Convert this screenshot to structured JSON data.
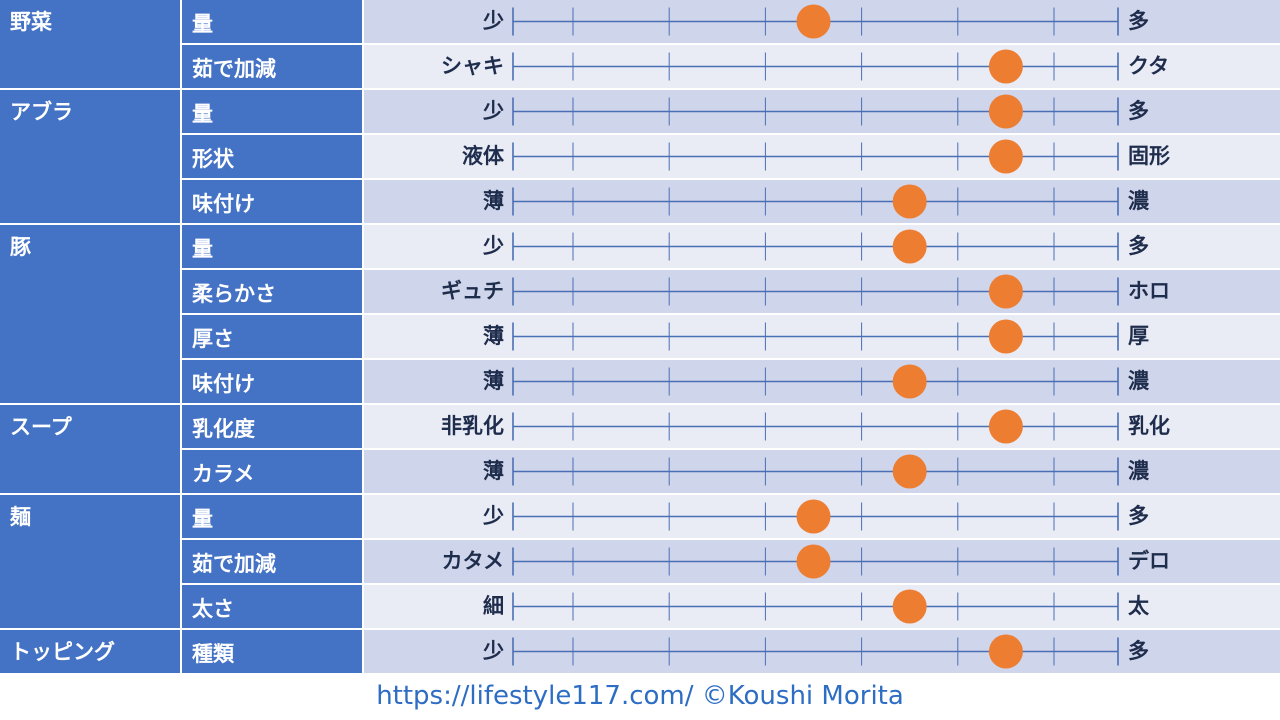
{
  "chart_data": {
    "type": "scatter",
    "scale": {
      "min": 1,
      "max": 6,
      "tick_values": [
        1,
        2,
        3,
        4,
        5,
        6
      ]
    },
    "colors": {
      "category_bg": "#4472c4",
      "band_dark": "#cfd5ea",
      "band_light": "#e9ebf5",
      "line": "#4a6fb5",
      "marker": "#ed7d31",
      "footer_text": "#2e6dc4"
    },
    "groups": [
      {
        "category": "野菜",
        "rows": [
          {
            "attribute": "量",
            "left": "少",
            "right": "多",
            "value": 3.5
          },
          {
            "attribute": "茹で加減",
            "left": "シャキ",
            "right": "クタ",
            "value": 5.5
          }
        ]
      },
      {
        "category": "アブラ",
        "rows": [
          {
            "attribute": "量",
            "left": "少",
            "right": "多",
            "value": 5.5
          },
          {
            "attribute": "形状",
            "left": "液体",
            "right": "固形",
            "value": 5.5
          },
          {
            "attribute": "味付け",
            "left": "薄",
            "right": "濃",
            "value": 4.5
          }
        ]
      },
      {
        "category": "豚",
        "rows": [
          {
            "attribute": "量",
            "left": "少",
            "right": "多",
            "value": 4.5
          },
          {
            "attribute": "柔らかさ",
            "left": "ギュチ",
            "right": "ホロ",
            "value": 5.5
          },
          {
            "attribute": "厚さ",
            "left": "薄",
            "right": "厚",
            "value": 5.5
          },
          {
            "attribute": "味付け",
            "left": "薄",
            "right": "濃",
            "value": 4.5
          }
        ]
      },
      {
        "category": "スープ",
        "rows": [
          {
            "attribute": "乳化度",
            "left": "非乳化",
            "right": "乳化",
            "value": 5.5
          },
          {
            "attribute": "カラメ",
            "left": "薄",
            "right": "濃",
            "value": 4.5
          }
        ]
      },
      {
        "category": "麺",
        "rows": [
          {
            "attribute": "量",
            "left": "少",
            "right": "多",
            "value": 3.5
          },
          {
            "attribute": "茹で加減",
            "left": "カタメ",
            "right": "デロ",
            "value": 3.5
          },
          {
            "attribute": "太さ",
            "left": "細",
            "right": "太",
            "value": 4.5
          }
        ]
      },
      {
        "category": "トッピング",
        "rows": [
          {
            "attribute": "種類",
            "left": "少",
            "right": "多",
            "value": 5.5
          }
        ]
      }
    ]
  },
  "footer": {
    "text": "https://lifestyle117.com/  ©Koushi Morita"
  }
}
